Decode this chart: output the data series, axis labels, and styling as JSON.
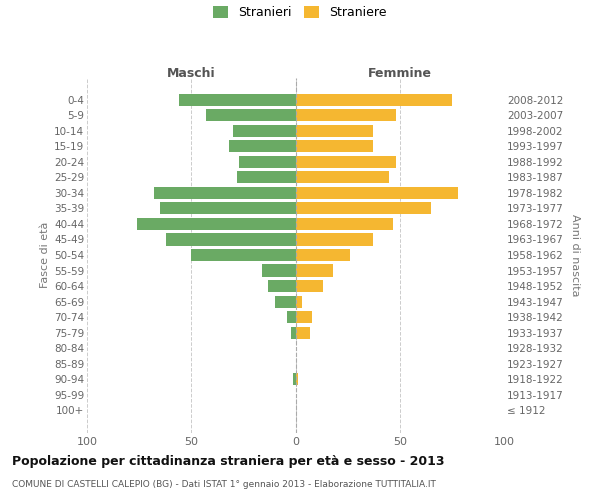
{
  "age_groups": [
    "100+",
    "95-99",
    "90-94",
    "85-89",
    "80-84",
    "75-79",
    "70-74",
    "65-69",
    "60-64",
    "55-59",
    "50-54",
    "45-49",
    "40-44",
    "35-39",
    "30-34",
    "25-29",
    "20-24",
    "15-19",
    "10-14",
    "5-9",
    "0-4"
  ],
  "birth_years": [
    "≤ 1912",
    "1913-1917",
    "1918-1922",
    "1923-1927",
    "1928-1932",
    "1933-1937",
    "1938-1942",
    "1943-1947",
    "1948-1952",
    "1953-1957",
    "1958-1962",
    "1963-1967",
    "1968-1972",
    "1973-1977",
    "1978-1982",
    "1983-1987",
    "1988-1992",
    "1993-1997",
    "1998-2002",
    "2003-2007",
    "2008-2012"
  ],
  "maschi": [
    0,
    0,
    1,
    0,
    0,
    2,
    4,
    10,
    13,
    16,
    50,
    62,
    76,
    65,
    68,
    28,
    27,
    32,
    30,
    43,
    56
  ],
  "femmine": [
    0,
    0,
    1,
    0,
    0,
    7,
    8,
    3,
    13,
    18,
    26,
    37,
    47,
    65,
    78,
    45,
    48,
    37,
    37,
    48,
    75
  ],
  "maschi_color": "#6aaa64",
  "femmine_color": "#f5b731",
  "background_color": "#ffffff",
  "grid_color": "#cccccc",
  "title": "Popolazione per cittadinanza straniera per età e sesso - 2013",
  "subtitle": "COMUNE DI CASTELLI CALEPIO (BG) - Dati ISTAT 1° gennaio 2013 - Elaborazione TUTTITALIA.IT",
  "ylabel_left": "Fasce di età",
  "ylabel_right": "Anni di nascita",
  "xlabel_left": "Maschi",
  "xlabel_right": "Femmine",
  "legend_stranieri": "Stranieri",
  "legend_straniere": "Straniere",
  "xlim": 100
}
